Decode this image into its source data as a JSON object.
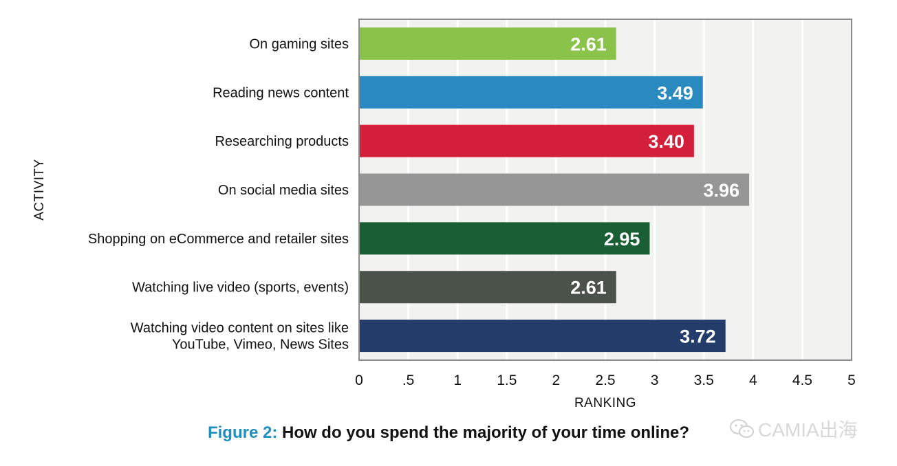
{
  "chart_data": {
    "type": "bar",
    "orientation": "horizontal",
    "categories": [
      [
        "On gaming sites"
      ],
      [
        "Reading news content"
      ],
      [
        "Researching products"
      ],
      [
        "On social media sites"
      ],
      [
        "Shopping on eCommerce and retailer sites"
      ],
      [
        "Watching live video (sports, events)"
      ],
      [
        "Watching video content on sites like",
        "YouTube, Vimeo, News Sites"
      ]
    ],
    "values": [
      2.61,
      3.49,
      3.4,
      3.96,
      2.95,
      2.61,
      3.72
    ],
    "value_labels": [
      "2.61",
      "3.49",
      "3.40",
      "3.96",
      "2.95",
      "2.61",
      "3.72"
    ],
    "colors": [
      "#8bc34a",
      "#2a8ac0",
      "#d41f3a",
      "#969696",
      "#1a5e35",
      "#4a524a",
      "#233c6a"
    ],
    "xticks": [
      0,
      0.5,
      1,
      1.5,
      2,
      2.5,
      3,
      3.5,
      4,
      4.5,
      5
    ],
    "xtick_labels": [
      "0",
      ".5",
      "1",
      "1.5",
      "2",
      "2.5",
      "3",
      "3.5",
      "4",
      "4.5",
      "5"
    ],
    "xlim": [
      0,
      5
    ],
    "xlabel": "RANKING",
    "ylabel": "ACTIVITY",
    "grid": true,
    "plot_background": "#f2f2f0"
  },
  "caption": {
    "lead": "Figure 2:",
    "text": " How do you spend the majority of your time online?"
  },
  "watermark": {
    "text": "CAMIA出海",
    "icon": "wechat-icon"
  }
}
